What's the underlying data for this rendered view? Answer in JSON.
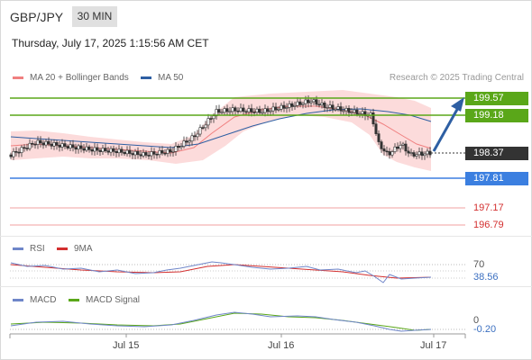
{
  "header": {
    "pair": "GBP/JPY",
    "timeframe": "30 MIN",
    "datetime": "Thursday, July 17, 2025 1:15:56 AM CET"
  },
  "legend": {
    "bb_label": "MA 20 + Bollinger Bands",
    "bb_color": "#f08080",
    "ma50_label": "MA 50",
    "ma50_color": "#2e5fa3",
    "credit": "Research © 2025 Trading Central"
  },
  "levels": {
    "r2": "199.57",
    "r1": "199.18",
    "price": "198.37",
    "s1": "197.81",
    "s2": "197.17",
    "s3": "196.79",
    "resistance_color": "#5aa719",
    "support_color": "#3b7fe0",
    "price_color": "#333333",
    "lower_color": "#d32f2f"
  },
  "rsi": {
    "label": "RSI",
    "ma_label": "9MA",
    "level": "70",
    "value": "38.56"
  },
  "macd": {
    "label": "MACD",
    "signal_label": "MACD Signal",
    "level": "0",
    "value": "-0.20"
  },
  "x_axis": [
    "Jul 15",
    "Jul 16",
    "Jul 17"
  ]
}
